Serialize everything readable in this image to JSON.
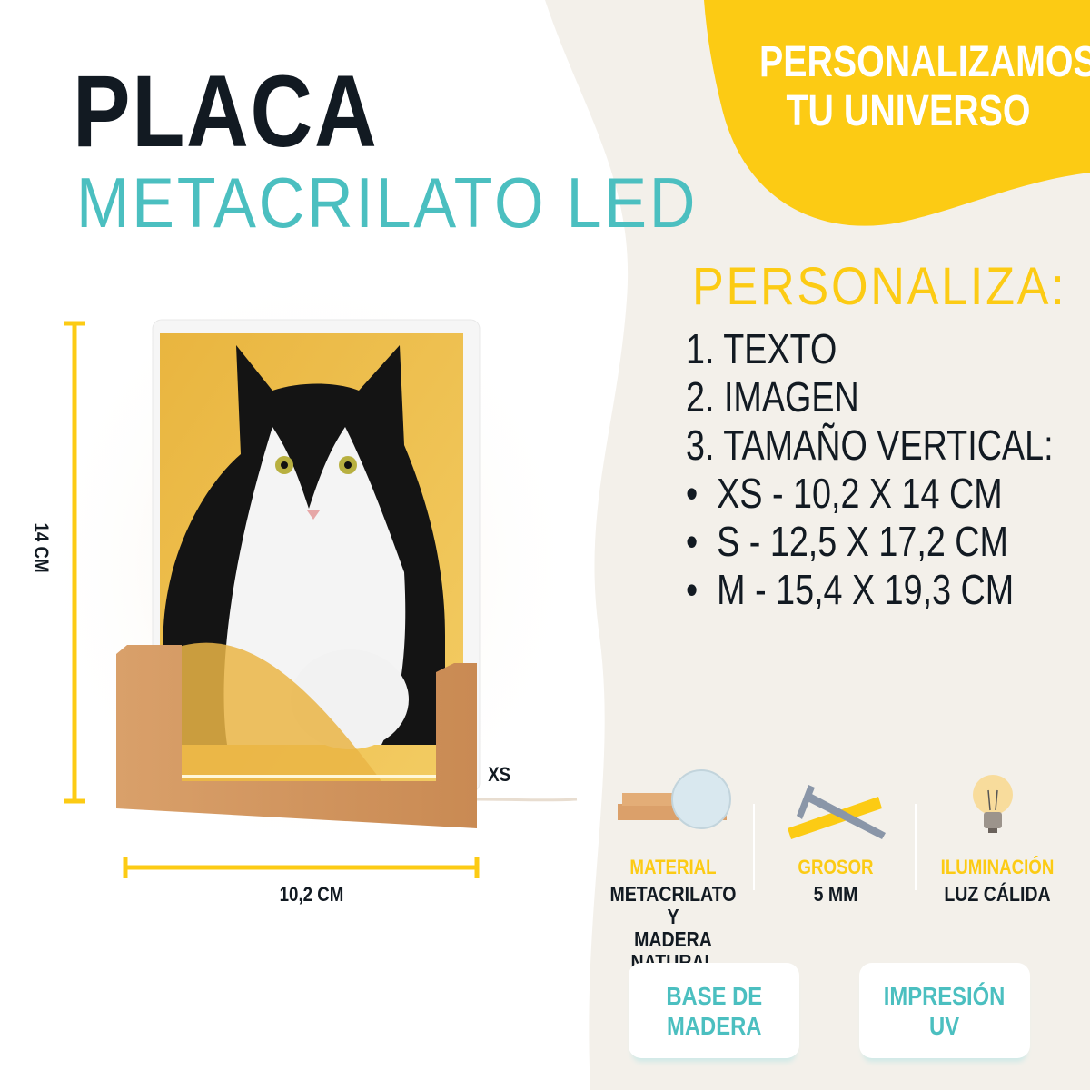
{
  "header": {
    "title": "PLACA",
    "subtitle": "METACRILATO LED"
  },
  "slogan": {
    "line1": "PERSONALIZAMOS",
    "line2": "TU UNIVERSO"
  },
  "customize": {
    "heading": "PERSONALIZA:",
    "items": [
      "1. TEXTO",
      "2. IMAGEN",
      "3. TAMAÑO VERTICAL:"
    ],
    "sizes": [
      "XS - 10,2 X 14 CM",
      "S - 12,5 X 17,2 CM",
      "M - 15,4 X 19,3 CM"
    ]
  },
  "dimensions": {
    "height": "14 CM",
    "width": "10,2 CM",
    "size": "XS"
  },
  "features": [
    {
      "label": "MATERIAL",
      "value1": "METACRILATO Y",
      "value2": "MADERA NATURAL",
      "icon": "wood-acrylic-icon"
    },
    {
      "label": "GROSOR",
      "value1": "5 MM",
      "icon": "caliper-ruler-icon"
    },
    {
      "label": "ILUMINACIÓN",
      "value1": "LUZ CÁLIDA",
      "icon": "light-bulb-icon"
    }
  ],
  "badges": [
    {
      "line1": "BASE DE",
      "line2": "MADERA"
    },
    {
      "line1": "IMPRESIÓN",
      "line2": "UV"
    }
  ],
  "colors": {
    "yellow": "#fccb14",
    "teal": "#4bbfc0",
    "dark": "#121a22",
    "beige": "#f3f0ea"
  }
}
